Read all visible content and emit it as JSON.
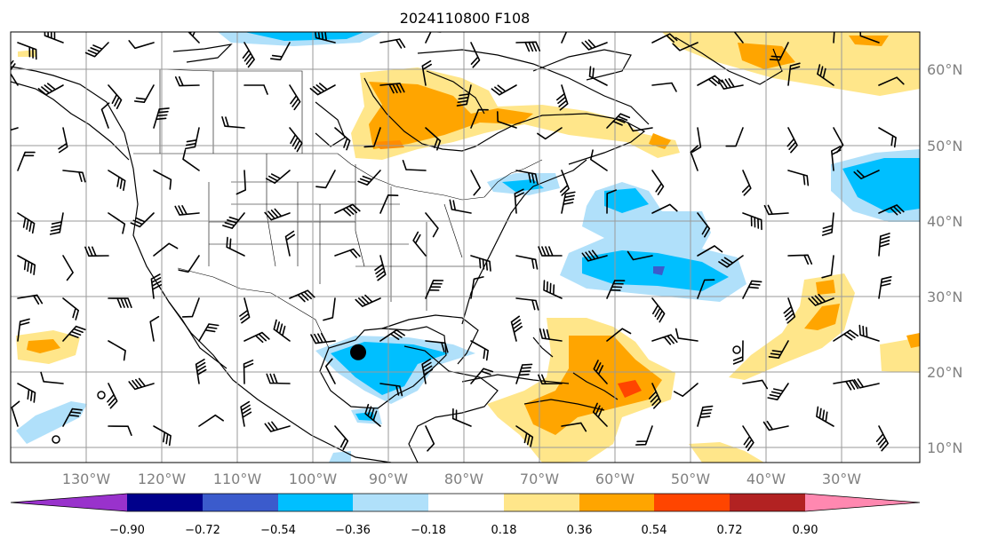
{
  "title": "2024110800 F108",
  "lat_labels": [
    "60°N",
    "50°N",
    "40°N",
    "30°N",
    "20°N",
    "10°N"
  ],
  "lon_labels": [
    "130°W",
    "120°W",
    "110°W",
    "100°W",
    "90°W",
    "80°W",
    "70°W",
    "60°W",
    "50°W",
    "40°W",
    "30°W"
  ],
  "colorbar": {
    "ticks": [
      "−0.90",
      "−0.72",
      "−0.54",
      "−0.36",
      "−0.18",
      "0.18",
      "0.36",
      "0.54",
      "0.72",
      "0.90"
    ],
    "colors": [
      "#9932cc",
      "#00008b",
      "#3b5bcc",
      "#00bfff",
      "#b0e0fa",
      "#ffffff",
      "#ffe68a",
      "#ffa500",
      "#ff4500",
      "#b22222",
      "#ff88b0"
    ]
  },
  "markers": {
    "tropical_center": {
      "lon": -94,
      "lat": 22.5
    }
  }
}
